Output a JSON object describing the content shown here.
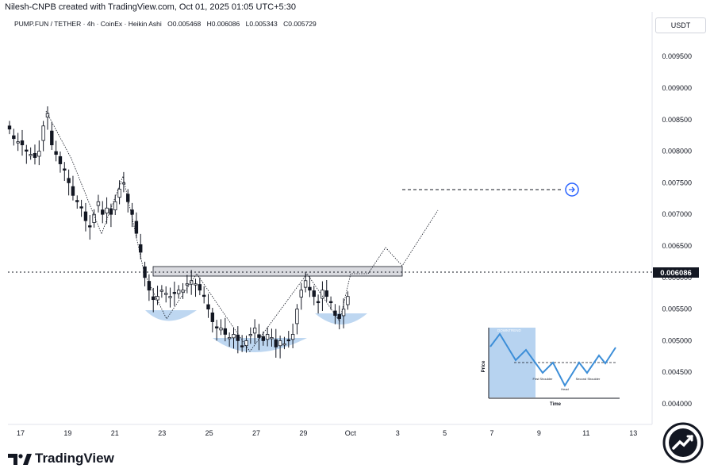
{
  "header": {
    "text": "Nilesh-CNPB created with TradingView.com, Oct 01, 2025 01:05 UTC+5:30"
  },
  "symbol": {
    "pair": "PUMP.FUN / TETHER · 4h · CoinEx · Heikin Ashi",
    "open": "O0.005468",
    "high": "H0.006086",
    "low": "L0.005343",
    "close": "C0.005729"
  },
  "currency_button": "USDT",
  "footer": {
    "brand": "TradingView"
  },
  "chart_data": {
    "type": "candlestick",
    "price_axis": {
      "range": [
        0.0039,
        0.01
      ],
      "ticks": [
        "0.009500",
        "0.009000",
        "0.008500",
        "0.008000",
        "0.007500",
        "0.007000",
        "0.006500",
        "0.006000",
        "0.005500",
        "0.005000",
        "0.004500",
        "0.004000"
      ],
      "current_price_label": "0.006086",
      "current_price": 0.006086
    },
    "time_axis": {
      "labels": [
        "17",
        "19",
        "21",
        "23",
        "25",
        "27",
        "29",
        "Oct",
        "3",
        "5",
        "7",
        "9",
        "11",
        "13"
      ]
    },
    "candles_close": [
      0.00835,
      0.0082,
      0.00815,
      0.0081,
      0.008,
      0.00795,
      0.0079,
      0.008,
      0.0084,
      0.0086,
      0.0081,
      0.00795,
      0.0078,
      0.0077,
      0.0075,
      0.0073,
      0.0072,
      0.0071,
      0.0069,
      0.0068,
      0.007,
      0.0072,
      0.007,
      0.0071,
      0.007,
      0.0072,
      0.0074,
      0.0075,
      0.0072,
      0.007,
      0.0067,
      0.0064,
      0.006,
      0.0058,
      0.00565,
      0.0057,
      0.0058,
      0.00575,
      0.0057,
      0.00575,
      0.0058,
      0.0058,
      0.0059,
      0.00595,
      0.0059,
      0.0058,
      0.0057,
      0.0055,
      0.0053,
      0.0052,
      0.0052,
      0.0051,
      0.00505,
      0.0051,
      0.005,
      0.0049,
      0.005,
      0.0051,
      0.0052,
      0.00505,
      0.005,
      0.0051,
      0.00505,
      0.0049,
      0.005,
      0.00495,
      0.005,
      0.0051,
      0.0055,
      0.0058,
      0.00595,
      0.0058,
      0.0057,
      0.0056,
      0.0058,
      0.0057,
      0.0056,
      0.0054,
      0.00535,
      0.0055,
      0.0057
    ],
    "resistance_zone": [
      0.006,
      0.00618
    ],
    "target_price": 0.0074,
    "pattern_labels": {
      "downtrend": "DOWNTREND",
      "price_axis": "Price",
      "time_axis": "Time",
      "first_shoulder": "First Shoulder",
      "head": "Head",
      "second_shoulder": "Second Shoulder"
    },
    "colors": {
      "candle": "#131722",
      "shoulder_fill": "#b7d3f0",
      "zone_fill": "#d9dadf",
      "pattern_line": "#3c8ed8",
      "target_marker": "#2962ff"
    }
  }
}
